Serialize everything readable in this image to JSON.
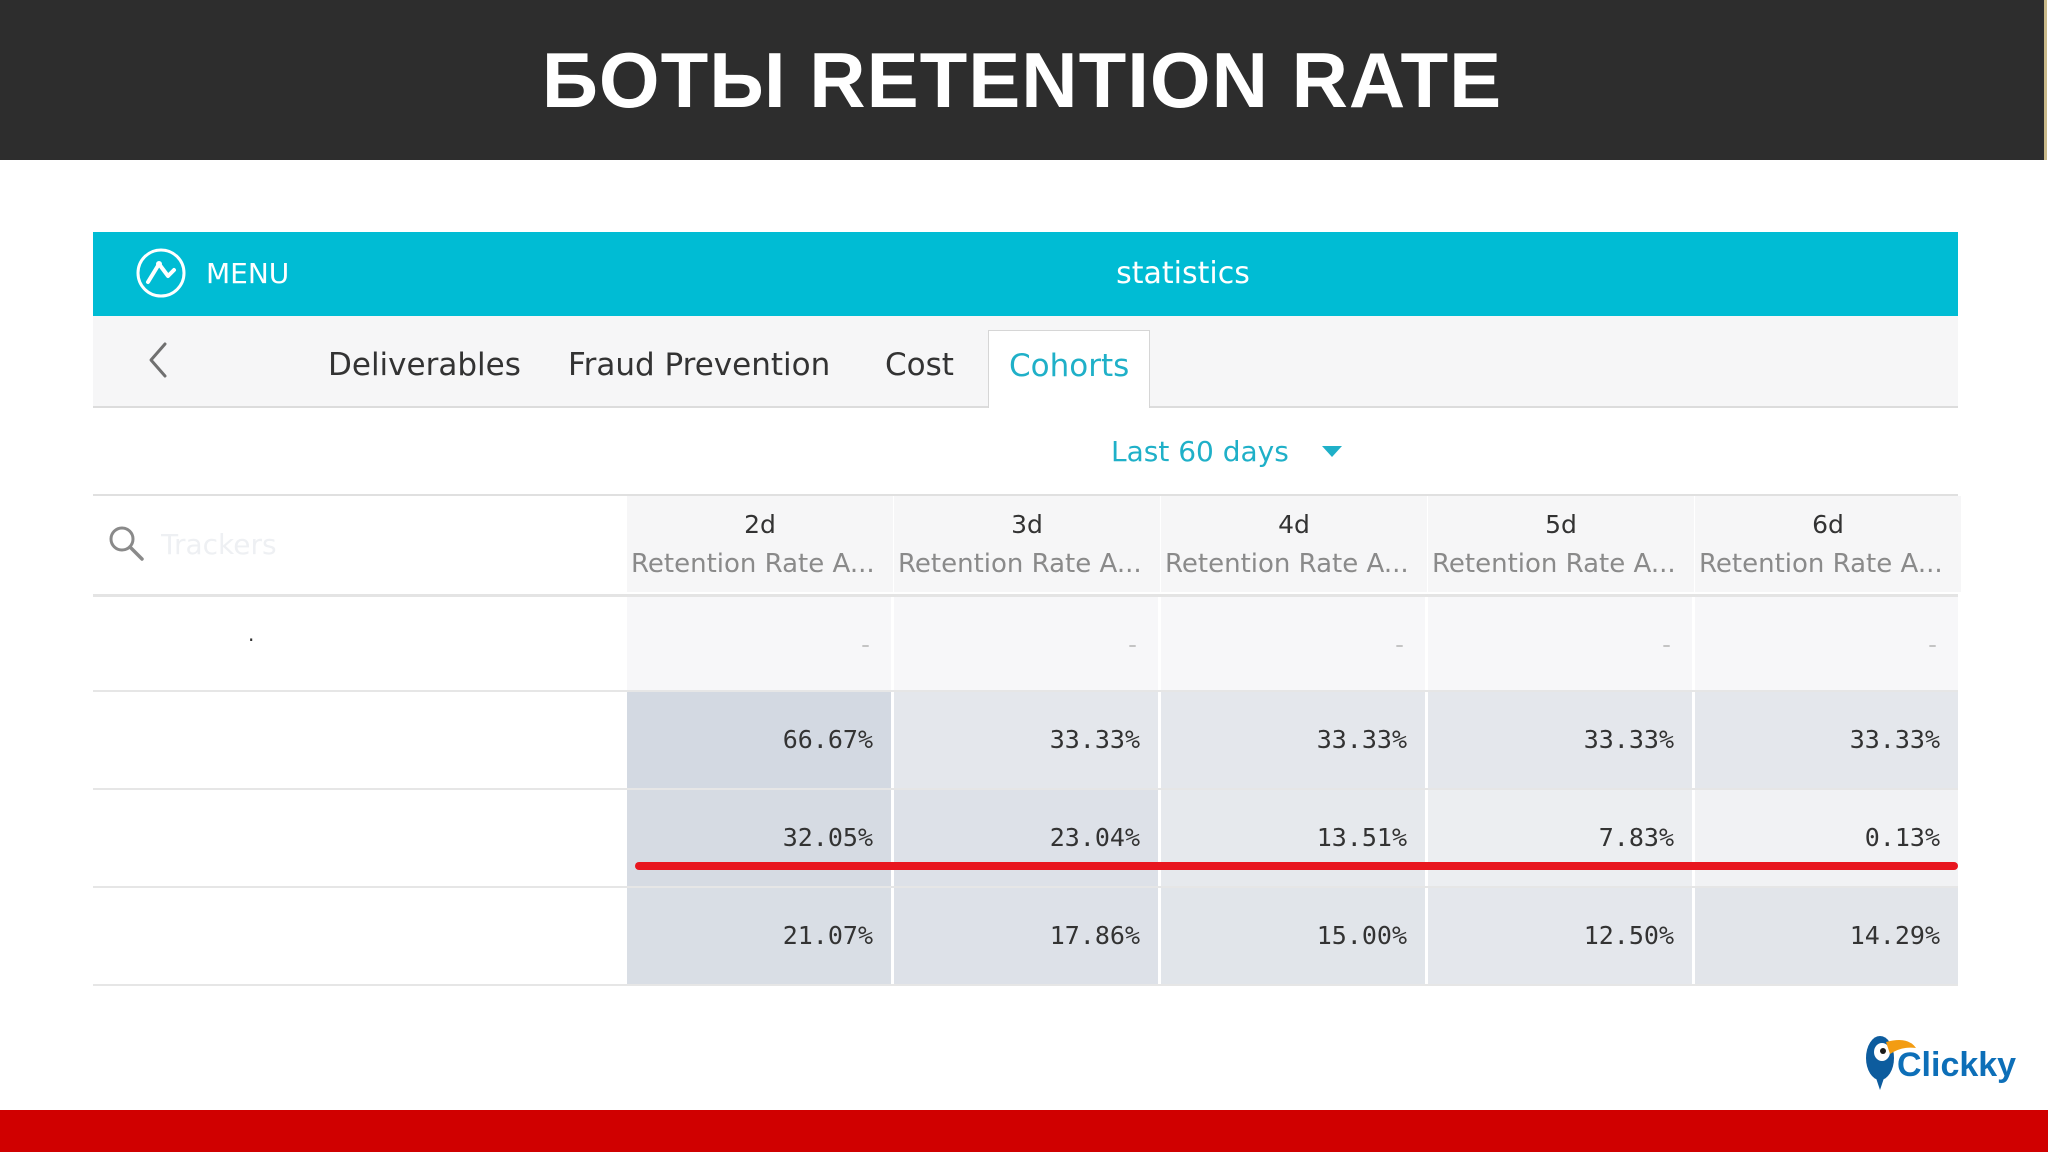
{
  "slide": {
    "title": "БОТЫ RETENTION RATE"
  },
  "topbar": {
    "menu_label": "MENU",
    "title": "statistics",
    "color": "#00bcd4"
  },
  "tabs": [
    {
      "label": "Deliverables",
      "active": false
    },
    {
      "label": "Fraud Prevention",
      "active": false
    },
    {
      "label": "Cost",
      "active": false
    },
    {
      "label": "Cohorts",
      "active": true
    }
  ],
  "date_range": {
    "value": "Last 60 days"
  },
  "search": {
    "placeholder": "Trackers"
  },
  "columns": [
    {
      "day": "2d",
      "metric": "Retention Rate A..."
    },
    {
      "day": "3d",
      "metric": "Retention Rate A..."
    },
    {
      "day": "4d",
      "metric": "Retention Rate A..."
    },
    {
      "day": "5d",
      "metric": "Retention Rate A..."
    },
    {
      "day": "6d",
      "metric": "Retention Rate A..."
    }
  ],
  "rows": [
    {
      "label": ".",
      "values": [
        "-",
        "-",
        "-",
        "-",
        "-"
      ]
    },
    {
      "label": "",
      "values": [
        "66.67%",
        "33.33%",
        "33.33%",
        "33.33%",
        "33.33%"
      ]
    },
    {
      "label": "",
      "values": [
        "32.05%",
        "23.04%",
        "13.51%",
        "7.83%",
        "0.13%"
      ]
    },
    {
      "label": "",
      "values": [
        "21.07%",
        "17.86%",
        "15.00%",
        "12.50%",
        "14.29%"
      ]
    }
  ],
  "highlight_color": "#e8161f",
  "logo": {
    "text": "Clickky"
  }
}
